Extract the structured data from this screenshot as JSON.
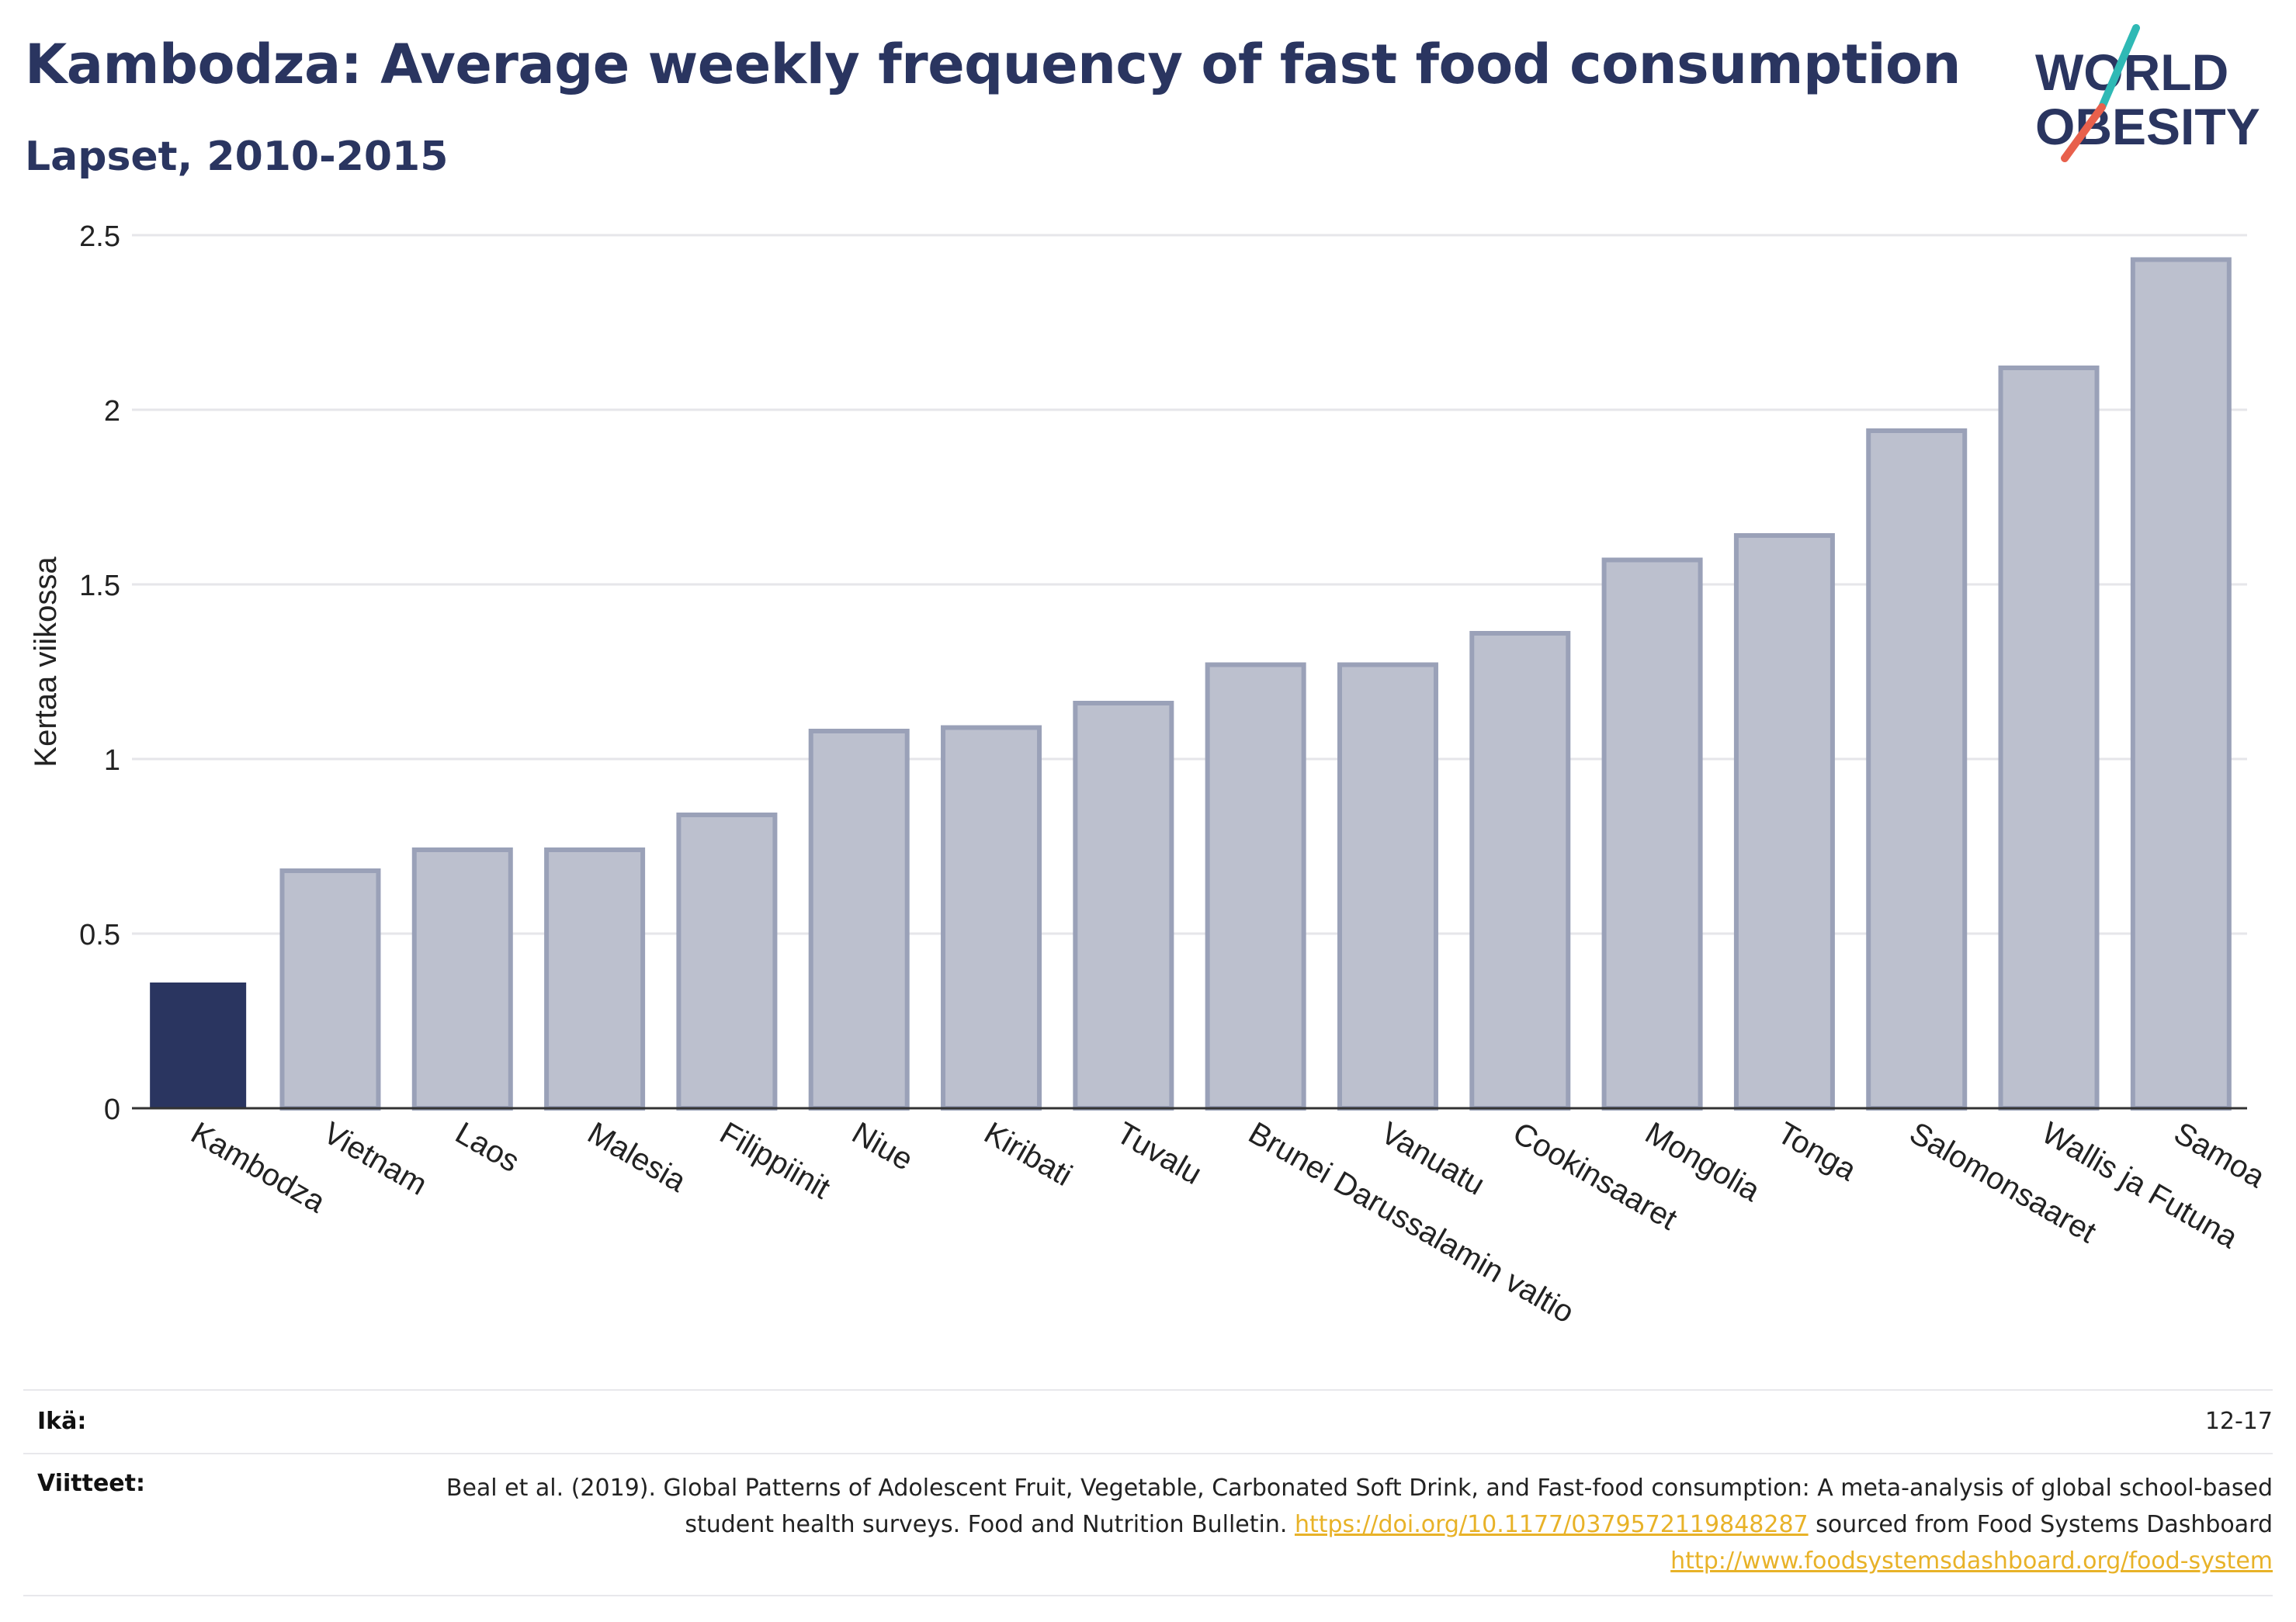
{
  "title": "Kambodza: Average weekly frequency of fast food consumption",
  "subtitle": "Lapset, 2010-2015",
  "logo": {
    "line1": "WORLD",
    "line2": "OBESITY"
  },
  "colors": {
    "highlight": "#2a3560",
    "bar": "#bcc0ce",
    "bar_outline": "#9aa1b8",
    "title": "#2a3560",
    "link": "#e8b228",
    "logo_slash_teal": "#2fb9b5",
    "logo_slash_red": "#e8604c"
  },
  "chart_data": {
    "type": "bar",
    "ylabel": "Kertaa viikossa",
    "xlabel": "",
    "ylim": [
      0,
      2.5
    ],
    "yticks": [
      "0",
      "0.5",
      "1",
      "1.5",
      "2",
      "2.5"
    ],
    "grid": true,
    "highlight": "Kambodza",
    "categories": [
      "Kambodza",
      "Vietnam",
      "Laos",
      "Malesia",
      "Filippiinit",
      "Niue",
      "Kiribati",
      "Tuvalu",
      "Brunei Darussalamin valtio",
      "Vanuatu",
      "Cookinsaaret",
      "Mongolia",
      "Tonga",
      "Salomonsaaret",
      "Wallis ja Futuna",
      "Samoa"
    ],
    "values": [
      0.36,
      0.68,
      0.74,
      0.74,
      0.84,
      1.08,
      1.09,
      1.16,
      1.27,
      1.27,
      1.36,
      1.57,
      1.64,
      1.94,
      2.12,
      2.43
    ]
  },
  "footer": {
    "age_label": "Ikä:",
    "age_value": "12-17",
    "refs_label": "Viitteet:",
    "ref_text_1": "Beal et al. (2019). Global Patterns of Adolescent Fruit, Vegetable, Carbonated Soft Drink, and Fast-food consumption: A meta-analysis of global school-based student health surveys. Food and Nutrition Bulletin.",
    "ref_link_1": "https://doi.org/10.1177/0379572119848287",
    "ref_text_2": "sourced from Food Systems Dashboard",
    "ref_link_2": "http://www.foodsystemsdashboard.org/food-system"
  }
}
